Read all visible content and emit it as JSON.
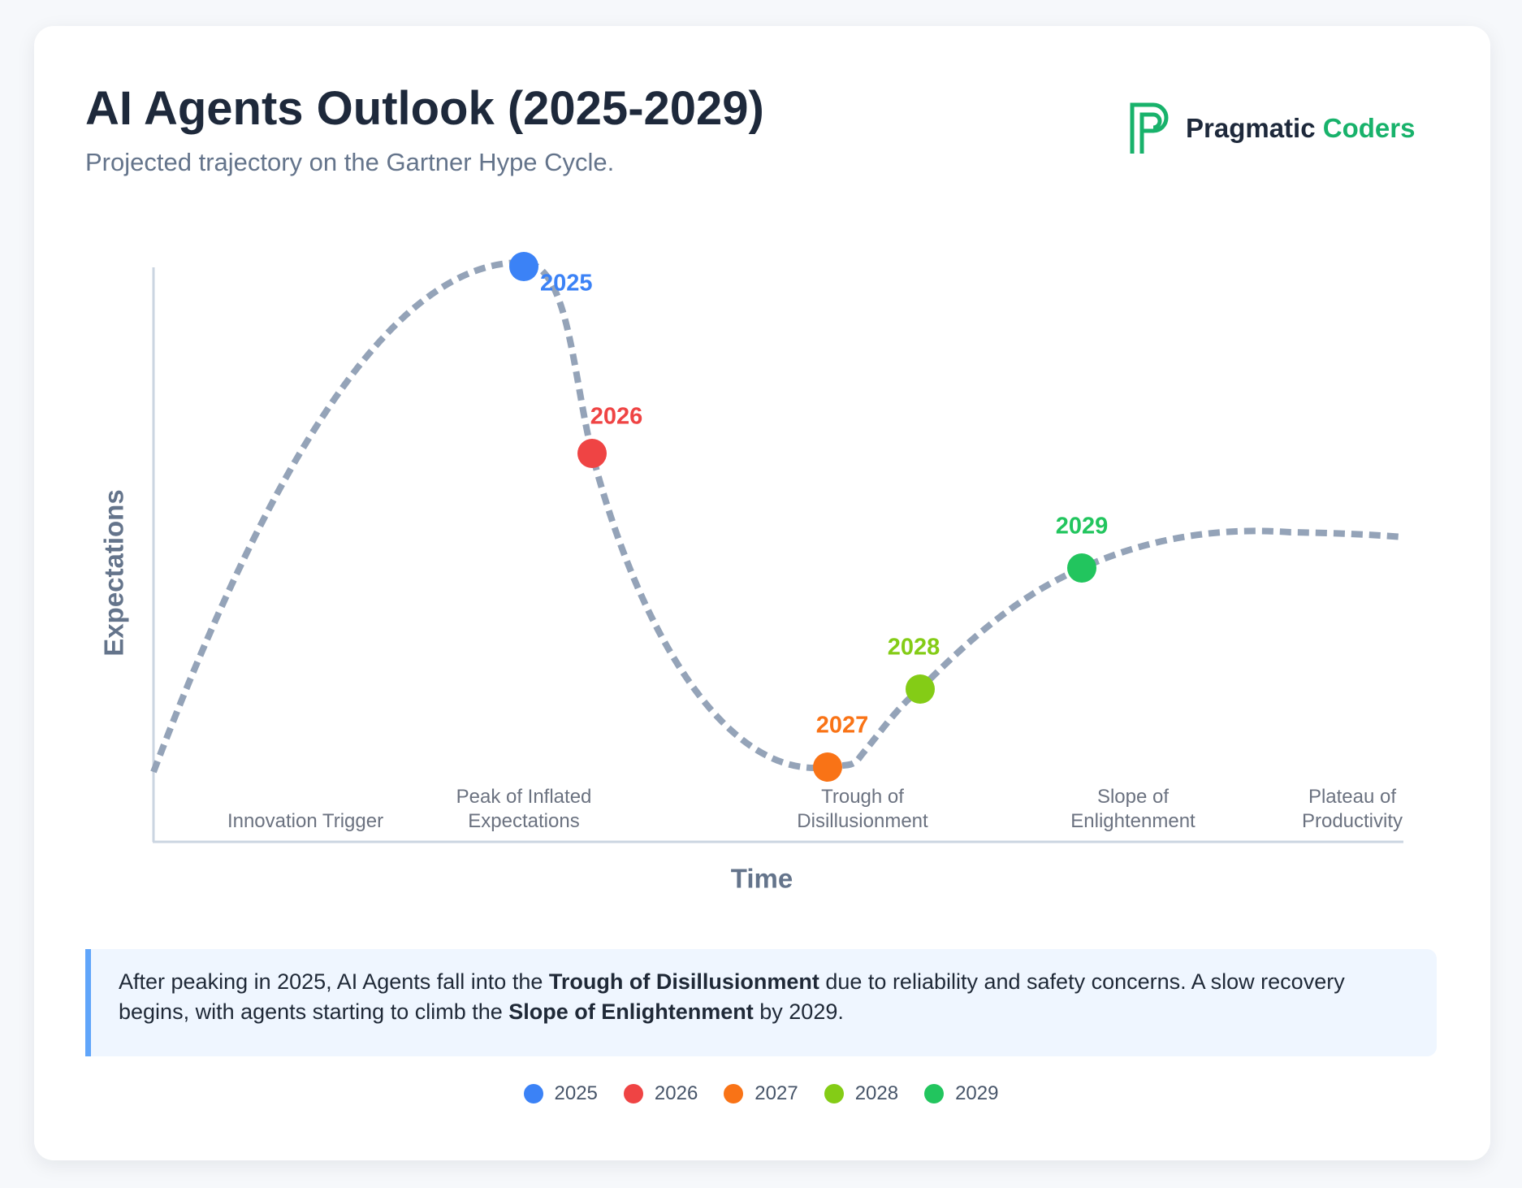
{
  "header": {
    "title": "AI Agents Outlook (2025-2029)",
    "subtitle": "Projected trajectory on the Gartner Hype Cycle.",
    "logo": [
      "Pragmatic",
      "Coders"
    ]
  },
  "chart": {
    "y_label": "Expectations",
    "x_label": "Time",
    "phases": [
      "Innovation Trigger",
      "Peak of Inflated Expectations",
      "Trough of Disillusionment",
      "Slope of Enlightenment",
      "Plateau of Productivity"
    ],
    "milestones": [
      {
        "label": "2025",
        "color": "#3b82f6"
      },
      {
        "label": "2026",
        "color": "#ef4444"
      },
      {
        "label": "2027",
        "color": "#f97316"
      },
      {
        "label": "2028",
        "color": "#84cc16"
      },
      {
        "label": "2029",
        "color": "#22c55e"
      }
    ]
  },
  "note": [
    "After peaking in 2025, AI Agents fall into the ",
    "Trough of Disillusionment",
    " due to reliability and safety concerns. A slow recovery begins, with agents starting to climb the ",
    "Slope of Enlightenment",
    " by 2029."
  ]
}
